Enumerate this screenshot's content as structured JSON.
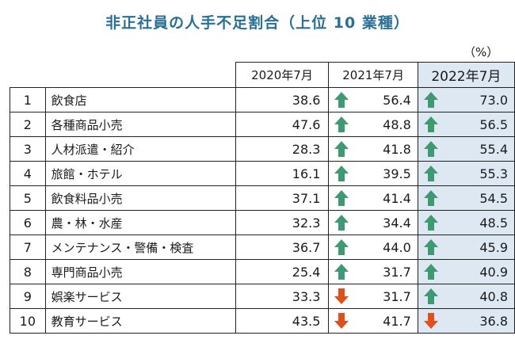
{
  "title": "非正社員の人手不足割合（上位 10 業種）",
  "unit_label": "（%）",
  "colors": {
    "title": "#2a6f95",
    "up_arrow": "#3f9a74",
    "down_arrow": "#e0501e",
    "highlight": "#dde8f3"
  },
  "chart_data": {
    "type": "table",
    "columns": [
      "",
      "",
      "2020年7月",
      "2021年7月",
      "2022年7月"
    ],
    "rows": [
      {
        "rank": "1",
        "industry": "飲食店",
        "y2020": "38.6",
        "y2021": "56.4",
        "dir2021": "up",
        "y2022": "73.0",
        "dir2022": "up"
      },
      {
        "rank": "2",
        "industry": "各種商品小売",
        "y2020": "47.6",
        "y2021": "48.8",
        "dir2021": "up",
        "y2022": "56.5",
        "dir2022": "up"
      },
      {
        "rank": "3",
        "industry": "人材派遣・紹介",
        "y2020": "28.3",
        "y2021": "41.8",
        "dir2021": "up",
        "y2022": "55.4",
        "dir2022": "up"
      },
      {
        "rank": "4",
        "industry": "旅館・ホテル",
        "y2020": "16.1",
        "y2021": "39.5",
        "dir2021": "up",
        "y2022": "55.3",
        "dir2022": "up"
      },
      {
        "rank": "5",
        "industry": "飲食料品小売",
        "y2020": "37.1",
        "y2021": "41.4",
        "dir2021": "up",
        "y2022": "54.5",
        "dir2022": "up"
      },
      {
        "rank": "6",
        "industry": "農・林・水産",
        "y2020": "32.3",
        "y2021": "34.4",
        "dir2021": "up",
        "y2022": "48.5",
        "dir2022": "up"
      },
      {
        "rank": "7",
        "industry": "メンテナンス・警備・検査",
        "y2020": "36.7",
        "y2021": "44.0",
        "dir2021": "up",
        "y2022": "45.9",
        "dir2022": "up"
      },
      {
        "rank": "8",
        "industry": "専門商品小売",
        "y2020": "25.4",
        "y2021": "31.7",
        "dir2021": "up",
        "y2022": "40.9",
        "dir2022": "up"
      },
      {
        "rank": "9",
        "industry": "娯楽サービス",
        "y2020": "33.3",
        "y2021": "31.7",
        "dir2021": "down",
        "y2022": "40.8",
        "dir2022": "up"
      },
      {
        "rank": "10",
        "industry": "教育サービス",
        "y2020": "43.5",
        "y2021": "41.7",
        "dir2021": "down",
        "y2022": "36.8",
        "dir2022": "down"
      }
    ]
  }
}
